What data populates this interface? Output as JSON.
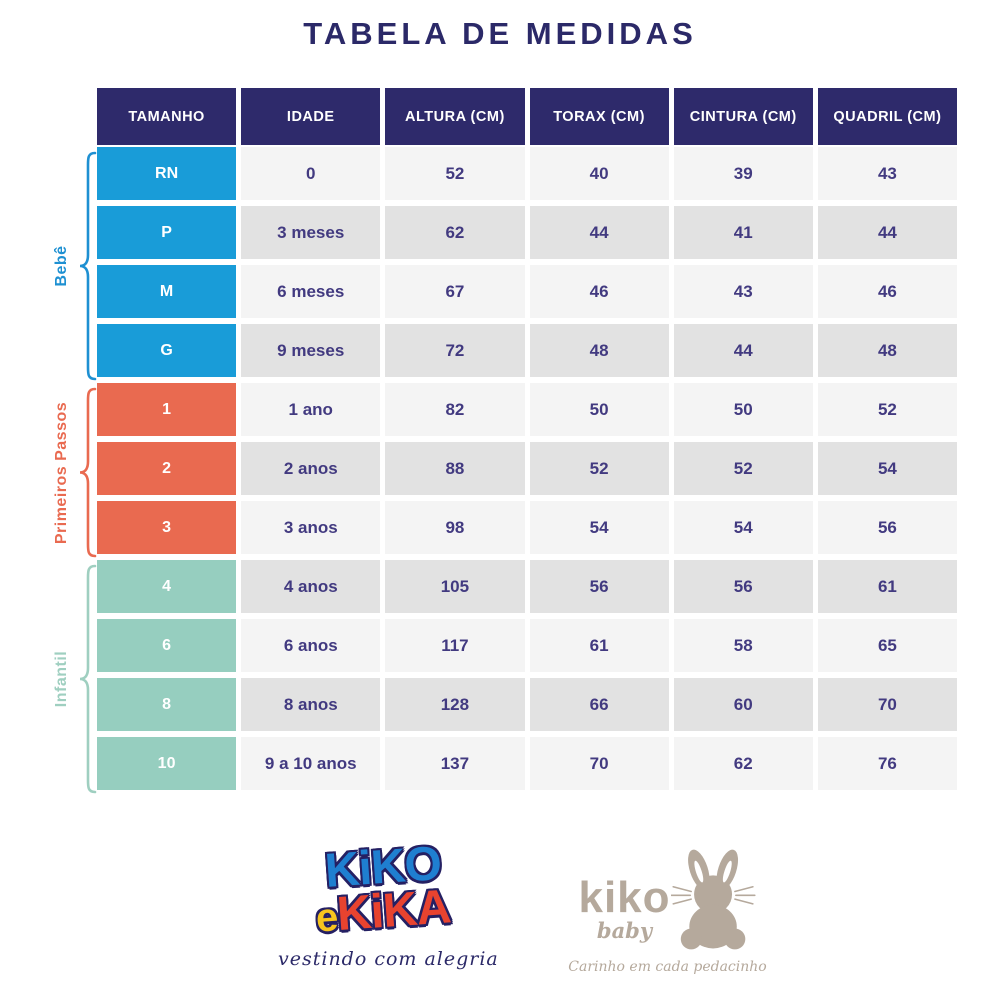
{
  "title": "TABELA DE MEDIDAS",
  "colors": {
    "title_text": "#2b2968",
    "header_bg": "#2e2a6b",
    "cell_text": "#423a80",
    "row_light": "#f4f4f4",
    "row_dark": "#e2e2e2"
  },
  "chart_data": {
    "type": "table",
    "title": "TABELA DE MEDIDAS",
    "columns": [
      "TAMANHO",
      "IDADE",
      "ALTURA (CM)",
      "TORAX (CM)",
      "CINTURA (CM)",
      "QUADRIL (CM)"
    ],
    "row_groups": [
      {
        "label": "Bebê",
        "bracket_color": "#1e90d2",
        "size_cell_color": "#199cd8",
        "rows": [
          [
            "RN",
            "0",
            "52",
            "40",
            "39",
            "43"
          ],
          [
            "P",
            "3 meses",
            "62",
            "44",
            "41",
            "44"
          ],
          [
            "M",
            "6 meses",
            "67",
            "46",
            "43",
            "46"
          ],
          [
            "G",
            "9 meses",
            "72",
            "48",
            "44",
            "48"
          ]
        ]
      },
      {
        "label": "Primeiros Passos",
        "bracket_color": "#e96a50",
        "size_cell_color": "#e96a50",
        "rows": [
          [
            "1",
            "1 ano",
            "82",
            "50",
            "50",
            "52"
          ],
          [
            "2",
            "2 anos",
            "88",
            "52",
            "52",
            "54"
          ],
          [
            "3",
            "3 anos",
            "98",
            "54",
            "54",
            "56"
          ]
        ]
      },
      {
        "label": "Infantil",
        "bracket_color": "#9fcfc0",
        "size_cell_color": "#96cebf",
        "rows": [
          [
            "4",
            "4 anos",
            "105",
            "56",
            "56",
            "61"
          ],
          [
            "6",
            "6 anos",
            "117",
            "61",
            "58",
            "65"
          ],
          [
            "8",
            "8 anos",
            "128",
            "66",
            "60",
            "70"
          ],
          [
            "10",
            "9 a 10 anos",
            "137",
            "70",
            "62",
            "76"
          ]
        ]
      }
    ]
  },
  "logos": {
    "kiko_e_kika": {
      "line1": "KiKO",
      "line2_e": "e",
      "line2_kika": "KiKA",
      "tagline": "vestindo com alegria",
      "color_blue": "#1f7fd0",
      "color_yellow": "#f7c51e",
      "color_red": "#e8432f",
      "outline_color": "#252063"
    },
    "kiko_baby": {
      "name": "kiko",
      "sub": "baby",
      "tagline": "Carinho em cada pedacinho",
      "icon": "bunny-icon",
      "color": "#b5a99c"
    }
  }
}
